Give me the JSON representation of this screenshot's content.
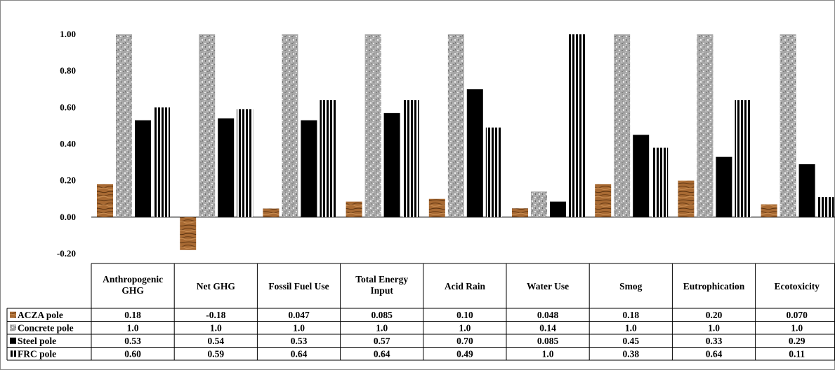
{
  "chart_data": {
    "type": "bar",
    "title": "",
    "xlabel": "",
    "ylabel": "",
    "ylim": [
      -0.2,
      1.0
    ],
    "y_ticks": [
      "1.00",
      "0.80",
      "0.60",
      "0.40",
      "0.20",
      "0.00",
      "-0.20"
    ],
    "grid": false,
    "legend": "data-table",
    "categories": [
      "Anthropogenic GHG",
      "Net GHG",
      "Fossil Fuel Use",
      "Total Energy Input",
      "Acid Rain",
      "Water Use",
      "Smog",
      "Eutrophication",
      "Ecotoxicity"
    ],
    "series": [
      {
        "name": "ACZA pole",
        "pattern": "wood",
        "color": "#a0612a",
        "values": [
          0.18,
          -0.18,
          0.047,
          0.085,
          0.1,
          0.048,
          0.18,
          0.2,
          0.07
        ],
        "labels": [
          "0.18",
          "-0.18",
          "0.047",
          "0.085",
          "0.10",
          "0.048",
          "0.18",
          "0.20",
          "0.070"
        ]
      },
      {
        "name": "Concrete pole",
        "pattern": "granite",
        "color": "#9a9a9a",
        "values": [
          1.0,
          1.0,
          1.0,
          1.0,
          1.0,
          0.14,
          1.0,
          1.0,
          1.0
        ],
        "labels": [
          "1.0",
          "1.0",
          "1.0",
          "1.0",
          "1.0",
          "0.14",
          "1.0",
          "1.0",
          "1.0"
        ]
      },
      {
        "name": "Steel pole",
        "pattern": "solid",
        "color": "#000000",
        "values": [
          0.53,
          0.54,
          0.53,
          0.57,
          0.7,
          0.085,
          0.45,
          0.33,
          0.29
        ],
        "labels": [
          "0.53",
          "0.54",
          "0.53",
          "0.57",
          "0.70",
          "0.085",
          "0.45",
          "0.33",
          "0.29"
        ]
      },
      {
        "name": "FRC pole",
        "pattern": "vertical-stripes",
        "color": "#000000",
        "values": [
          0.6,
          0.59,
          0.64,
          0.64,
          0.49,
          1.0,
          0.38,
          0.64,
          0.11
        ],
        "labels": [
          "0.60",
          "0.59",
          "0.64",
          "0.64",
          "0.49",
          "1.0",
          "0.38",
          "0.64",
          "0.11"
        ]
      }
    ]
  }
}
